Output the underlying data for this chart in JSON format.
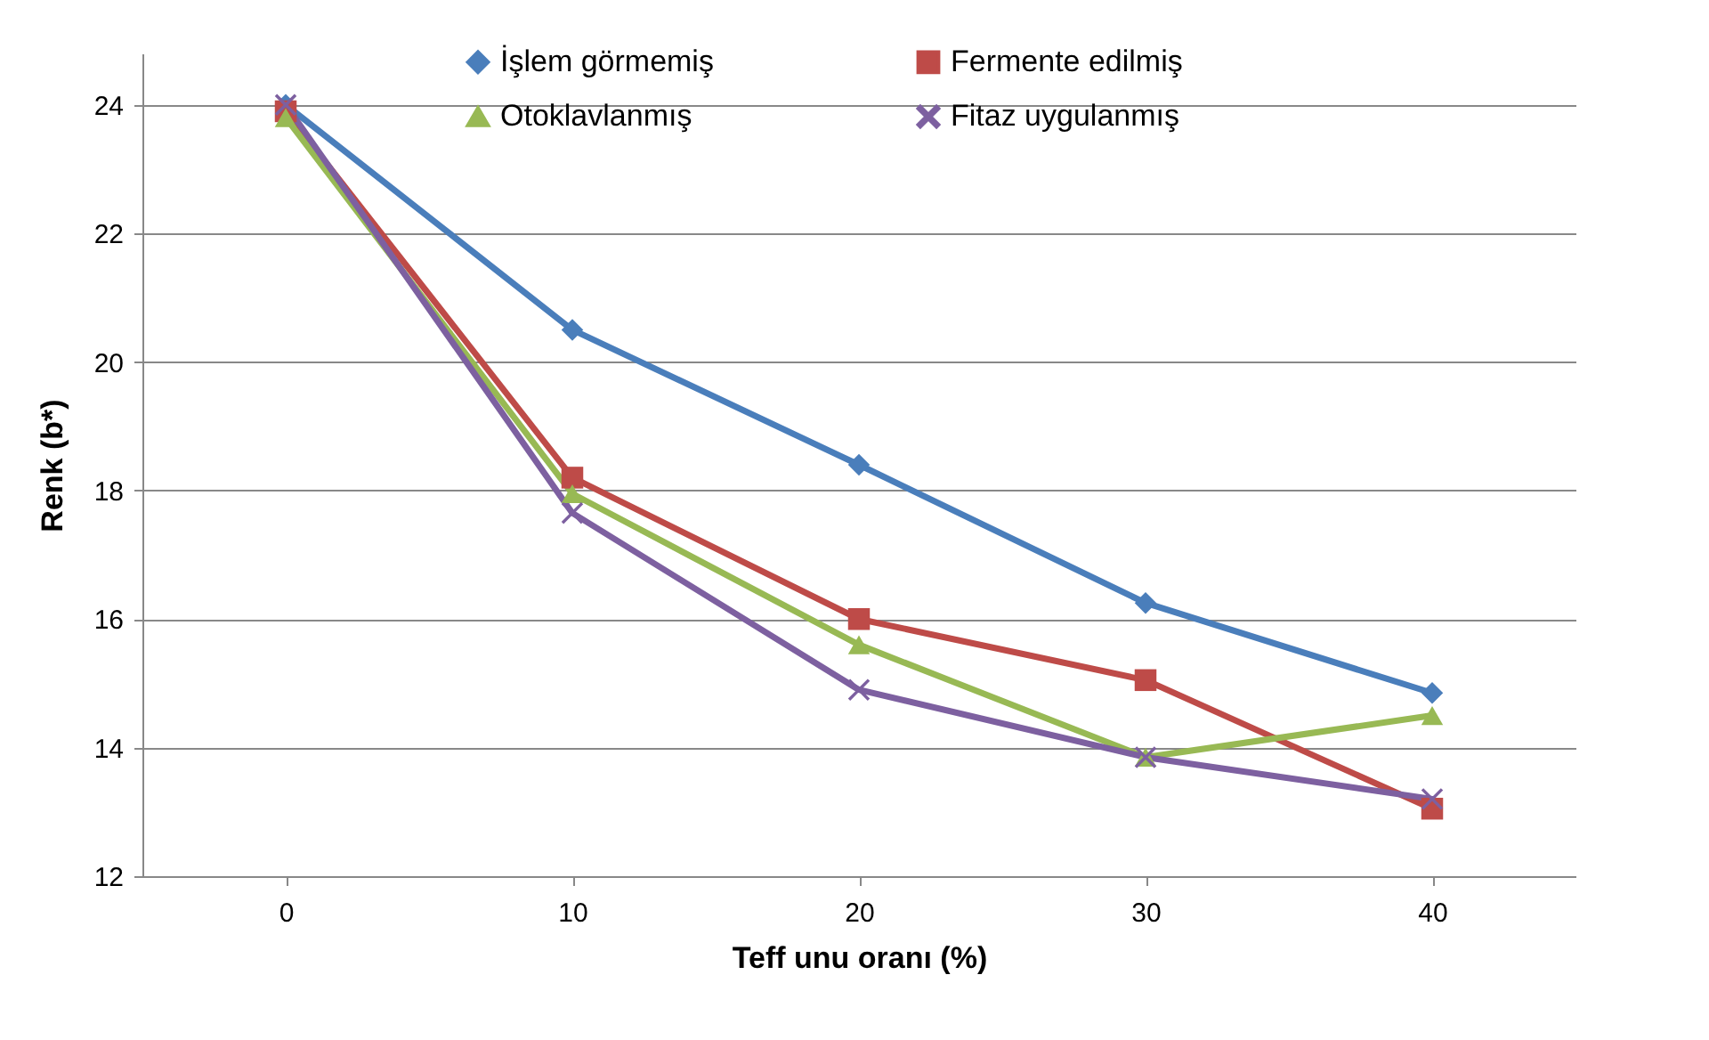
{
  "chart_data": {
    "type": "line",
    "xlabel": "Teff unu oranı (%)",
    "ylabel": "Renk (b*)",
    "categories": [
      "0",
      "10",
      "20",
      "30",
      "40"
    ],
    "ylim": [
      12,
      24.8
    ],
    "yticks": [
      12,
      14,
      16,
      18,
      20,
      22,
      24
    ],
    "grid": "y",
    "legend": "top",
    "line_style": "solid",
    "series": [
      {
        "name": "İşlem görmemiş",
        "color": "#4a7ebb",
        "marker": "diamond",
        "values": [
          24.0,
          20.5,
          18.4,
          16.25,
          14.85
        ]
      },
      {
        "name": "Fermente edilmiş",
        "color": "#be4b48",
        "marker": "square",
        "values": [
          23.9,
          18.2,
          16.0,
          15.05,
          13.05
        ]
      },
      {
        "name": "Otoklavlanmış",
        "color": "#98b954",
        "marker": "triangle",
        "values": [
          23.8,
          17.95,
          15.6,
          13.85,
          14.5
        ]
      },
      {
        "name": "Fitaz uygulanmış",
        "color": "#7d60a0",
        "marker": "cross",
        "values": [
          24.0,
          17.65,
          14.9,
          13.85,
          13.2
        ]
      }
    ]
  }
}
